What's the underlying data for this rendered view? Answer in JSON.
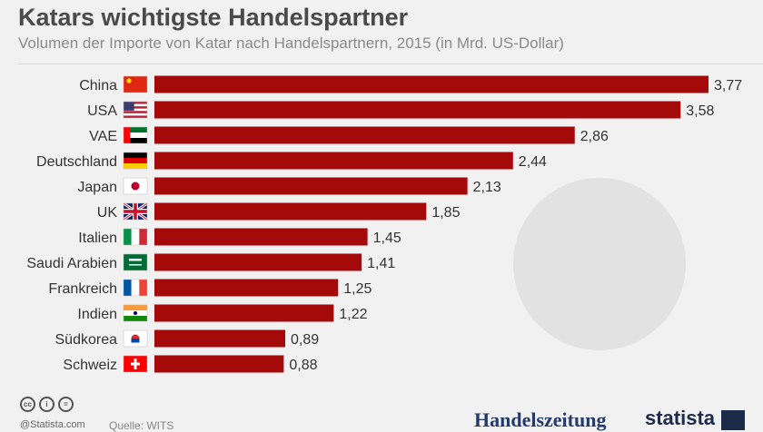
{
  "title": "Katars wichtigste Handelspartner",
  "subtitle": "Volumen der Importe von Katar nach Handelspartnern, 2015 (in Mrd. US-Dollar)",
  "footer": {
    "credit": "@Statista.com",
    "source": "Quelle: WITS",
    "logo_handelszeitung": "Handelszeitung",
    "logo_statista": "statista"
  },
  "colors": {
    "bar": "#a50a0a",
    "background": "#f1f1f1",
    "label": "#333333"
  },
  "chart_data": {
    "type": "bar",
    "orientation": "horizontal",
    "categories": [
      "China",
      "USA",
      "VAE",
      "Deutschland",
      "Japan",
      "UK",
      "Italien",
      "Saudi Arabien",
      "Frankreich",
      "Indien",
      "Südkorea",
      "Schweiz"
    ],
    "values": [
      3.77,
      3.58,
      2.86,
      2.44,
      2.13,
      1.85,
      1.45,
      1.41,
      1.25,
      1.22,
      0.89,
      0.88
    ],
    "value_labels": [
      "3,77",
      "3,58",
      "2,86",
      "2,44",
      "2,13",
      "1,85",
      "1,45",
      "1,41",
      "1,25",
      "1,22",
      "0,89",
      "0,88"
    ],
    "flags": [
      "china-flag",
      "usa-flag",
      "uae-flag",
      "germany-flag",
      "japan-flag",
      "uk-flag",
      "italy-flag",
      "saudi-arabia-flag",
      "france-flag",
      "india-flag",
      "south-korea-flag",
      "switzerland-flag"
    ],
    "xlim": [
      0,
      3.77
    ],
    "grid": false,
    "legend": "none"
  }
}
